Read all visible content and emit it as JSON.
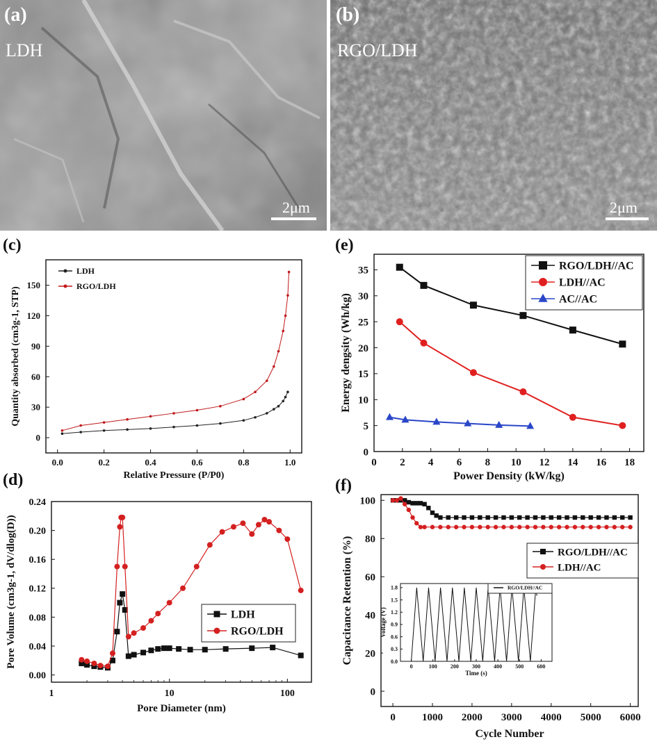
{
  "panels": {
    "a": {
      "label": "(a)",
      "sample": "LDH",
      "scale": "2μm"
    },
    "b": {
      "label": "(b)",
      "sample": "RGO/LDH",
      "scale": "2μm"
    },
    "c": {
      "label": "(c)"
    },
    "d": {
      "label": "(d)"
    },
    "e": {
      "label": "(e)"
    },
    "f": {
      "label": "(f)"
    }
  },
  "chart_data": [
    {
      "id": "c",
      "type": "scatter",
      "xlabel": "Relative Pressure (P/P0)",
      "ylabel": "Quantity absorbed (cm3g-1, STP)",
      "xlim": [
        -0.05,
        1.05
      ],
      "ylim": [
        -15,
        175
      ],
      "xticks": [
        0.0,
        0.2,
        0.4,
        0.6,
        0.8,
        1.0
      ],
      "yticks": [
        0,
        30,
        60,
        90,
        120,
        150
      ],
      "legend_position": "top-left",
      "series": [
        {
          "name": "LDH",
          "color": "#222222",
          "x": [
            0.02,
            0.1,
            0.2,
            0.3,
            0.4,
            0.5,
            0.6,
            0.7,
            0.8,
            0.85,
            0.9,
            0.93,
            0.95,
            0.97,
            0.98,
            0.99
          ],
          "y": [
            4,
            5.5,
            7,
            8,
            9,
            10.5,
            12,
            14,
            17,
            20,
            24,
            28,
            31,
            36,
            40,
            45
          ]
        },
        {
          "name": "RGO/LDH",
          "color": "#c0181a",
          "x": [
            0.02,
            0.1,
            0.2,
            0.3,
            0.4,
            0.5,
            0.6,
            0.7,
            0.8,
            0.85,
            0.9,
            0.93,
            0.95,
            0.97,
            0.98,
            0.99,
            0.995
          ],
          "y": [
            7,
            12,
            15,
            18,
            21,
            24,
            27,
            31,
            38,
            45,
            56,
            70,
            85,
            105,
            120,
            140,
            163
          ]
        }
      ]
    },
    {
      "id": "d",
      "type": "line",
      "x_scale": "log",
      "xlabel": "Pore Diameter (nm)",
      "ylabel": "Pore Volume (cm3g-1, dV/dlog(D))",
      "xlim": [
        1,
        160
      ],
      "ylim": [
        -0.01,
        0.24
      ],
      "xticks": [
        1,
        10,
        100
      ],
      "yticks": [
        0.0,
        0.04,
        0.08,
        0.12,
        0.16,
        0.2,
        0.24
      ],
      "legend_position": "center-right",
      "series": [
        {
          "name": "LDH",
          "color": "#111111",
          "marker": "square",
          "x": [
            1.8,
            2.0,
            2.3,
            2.6,
            3.0,
            3.3,
            3.6,
            3.8,
            4.0,
            4.2,
            4.5,
            5,
            6,
            7,
            8,
            9,
            10,
            12,
            15,
            20,
            30,
            50,
            75,
            130
          ],
          "y": [
            0.016,
            0.014,
            0.012,
            0.011,
            0.01,
            0.02,
            0.06,
            0.1,
            0.112,
            0.09,
            0.026,
            0.028,
            0.031,
            0.034,
            0.036,
            0.037,
            0.037,
            0.036,
            0.035,
            0.035,
            0.036,
            0.037,
            0.038,
            0.027
          ]
        },
        {
          "name": "RGO/LDH",
          "color": "#d42020",
          "marker": "circle",
          "x": [
            1.8,
            2.0,
            2.3,
            2.6,
            3.0,
            3.3,
            3.6,
            3.8,
            3.9,
            4.0,
            4.2,
            4.5,
            5,
            6,
            7,
            8,
            10,
            13,
            17,
            22,
            28,
            35,
            42,
            50,
            57,
            64,
            70,
            85,
            100,
            130
          ],
          "y": [
            0.021,
            0.019,
            0.016,
            0.013,
            0.012,
            0.03,
            0.15,
            0.205,
            0.218,
            0.218,
            0.15,
            0.053,
            0.058,
            0.065,
            0.075,
            0.085,
            0.1,
            0.12,
            0.15,
            0.18,
            0.198,
            0.205,
            0.21,
            0.195,
            0.208,
            0.215,
            0.212,
            0.2,
            0.188,
            0.117
          ]
        }
      ]
    },
    {
      "id": "e",
      "type": "line",
      "xlabel": "Power Density (kW/kg)",
      "ylabel": "Energy dengsity (Wh/kg)",
      "xlim": [
        0,
        19
      ],
      "ylim": [
        0,
        38
      ],
      "xticks": [
        0,
        2,
        4,
        6,
        8,
        10,
        12,
        14,
        16,
        18
      ],
      "yticks": [
        0,
        5,
        10,
        15,
        20,
        25,
        30,
        35
      ],
      "legend_position": "top-right",
      "series": [
        {
          "name": "RGO/LDH//AC",
          "color": "#111111",
          "marker": "square",
          "x": [
            1.8,
            3.5,
            7,
            10.5,
            14,
            17.5
          ],
          "y": [
            35.5,
            32,
            28.2,
            26.2,
            23.4,
            20.7
          ]
        },
        {
          "name": "LDH//AC",
          "color": "#e02020",
          "marker": "circle",
          "x": [
            1.8,
            3.5,
            7,
            10.5,
            14,
            17.5
          ],
          "y": [
            25,
            20.9,
            15.2,
            11.5,
            6.6,
            5
          ]
        },
        {
          "name": "AC//AC",
          "color": "#2a46c8",
          "marker": "triangle",
          "x": [
            1.1,
            2.2,
            4.4,
            6.6,
            8.8,
            11
          ],
          "y": [
            6.6,
            6.1,
            5.7,
            5.4,
            5.1,
            4.9
          ]
        }
      ]
    },
    {
      "id": "f",
      "type": "line",
      "xlabel": "Cycle Number",
      "ylabel": "Capacitance Retention (%)",
      "xlim": [
        -300,
        6200
      ],
      "ylim": [
        -8,
        103
      ],
      "xticks": [
        0,
        1000,
        2000,
        3000,
        4000,
        5000,
        6000
      ],
      "yticks": [
        0,
        20,
        40,
        60,
        80,
        100
      ],
      "legend_position": "center-right",
      "series": [
        {
          "name": "RGO/LDH//AC",
          "color": "#111111",
          "marker": "square",
          "x": [
            0,
            100,
            200,
            300,
            400,
            500,
            600,
            700,
            800,
            900,
            1000,
            1100,
            1200,
            1400,
            1600,
            1800,
            2000,
            2200,
            2400,
            2600,
            2800,
            3000,
            3200,
            3400,
            3600,
            3800,
            4000,
            4200,
            4400,
            4600,
            4800,
            5000,
            5200,
            5400,
            5600,
            5800,
            6000
          ],
          "y": [
            100,
            100,
            100,
            100,
            99,
            98.5,
            98.5,
            98.5,
            98,
            96,
            93.5,
            92,
            91,
            91,
            91,
            91,
            91,
            91,
            91,
            91,
            91,
            91,
            91,
            91,
            91,
            91,
            91,
            91,
            91,
            91,
            91,
            91,
            91,
            91,
            91,
            91,
            91
          ]
        },
        {
          "name": "LDH//AC",
          "color": "#d42020",
          "marker": "circle",
          "x": [
            0,
            100,
            200,
            300,
            400,
            500,
            600,
            700,
            800,
            1000,
            1200,
            1400,
            1600,
            1800,
            2000,
            2200,
            2400,
            2600,
            2800,
            3000,
            3200,
            3400,
            3600,
            3800,
            4000,
            4200,
            4400,
            4600,
            4800,
            5000,
            5200,
            5400,
            5600,
            5800,
            6000
          ],
          "y": [
            100,
            100,
            101,
            98,
            95,
            91,
            88,
            86,
            86,
            86,
            86,
            86,
            86,
            86,
            86,
            86,
            86,
            86,
            86,
            86,
            86,
            86,
            86,
            86,
            86,
            86,
            86,
            86,
            86,
            86,
            86,
            86,
            86,
            86,
            86
          ]
        }
      ]
    },
    {
      "id": "f-inset",
      "type": "line",
      "xlabel": "Time (s)",
      "ylabel": "Voltage (V)",
      "xlim": [
        -50,
        650
      ],
      "ylim": [
        0,
        1.9
      ],
      "xticks": [
        0,
        100,
        200,
        300,
        400,
        500,
        600
      ],
      "yticks": [
        0.0,
        0.3,
        0.6,
        0.9,
        1.2,
        1.5,
        1.8
      ],
      "legend_position": "top-right",
      "series": [
        {
          "name": "RGO/LDH//AC",
          "color": "#111111",
          "x": [
            0,
            25,
            55,
            80,
            110,
            135,
            165,
            190,
            220,
            245,
            275,
            300,
            330,
            355,
            385,
            410,
            440,
            465,
            495,
            520,
            550,
            575,
            580
          ],
          "y": [
            0,
            1.8,
            0,
            1.8,
            0,
            1.8,
            0,
            1.8,
            0,
            1.8,
            0,
            1.8,
            0,
            1.8,
            0,
            1.8,
            0,
            1.8,
            0,
            1.8,
            0,
            1.8,
            1.6
          ]
        }
      ]
    }
  ]
}
